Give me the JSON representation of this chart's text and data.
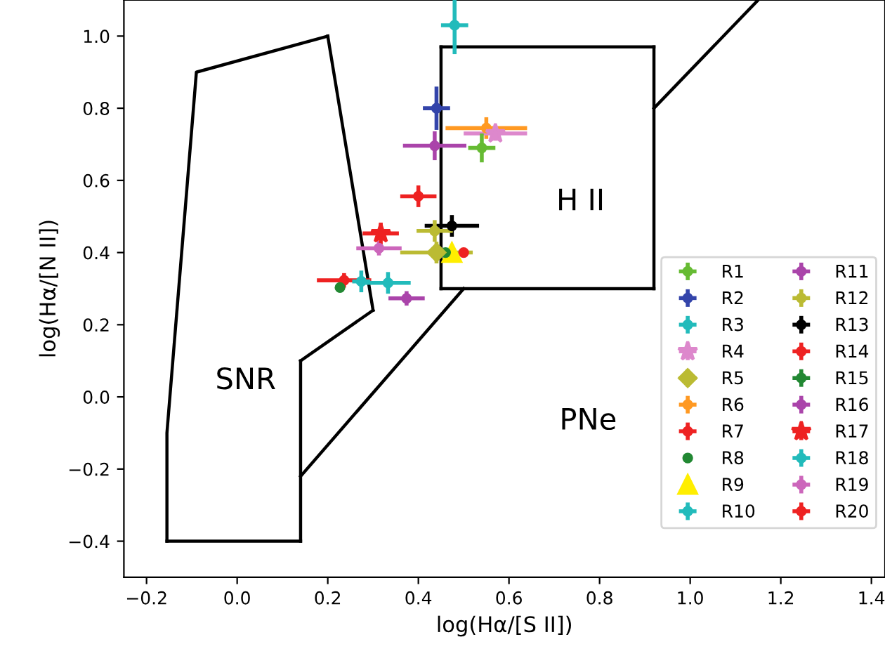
{
  "chart_data": {
    "type": "scatter",
    "xlabel": "log(Hα/[S II])",
    "ylabel": "log(Hα/[N II])",
    "xlim": [
      -0.25,
      1.43
    ],
    "ylim": [
      -0.5,
      1.1
    ],
    "xticks": [
      {
        "value": -0.2,
        "label": "−0.2"
      },
      "0.0",
      0.2,
      0.4,
      0.6,
      0.8,
      "1.0",
      1.2,
      1.4
    ],
    "yticks": [
      {
        "value": -0.4,
        "label": "−0.4"
      },
      {
        "value": -0.2,
        "label": "−0.2"
      },
      "0.0",
      0.2,
      0.4,
      0.6,
      0.8,
      "1.0"
    ],
    "legend": "bottom right",
    "grid": false,
    "annotations": [
      "SNR",
      "H II",
      "PNe"
    ],
    "series": [
      {
        "type": "line",
        "color": "#000000",
        "x": [
          -0.155,
          -0.155,
          -0.09,
          0.2
        ],
        "values": [
          -0.4,
          -0.1,
          0.9,
          1.0
        ],
        "marker": "none"
      },
      {
        "type": "line",
        "color": "#000000",
        "x": [
          0.2,
          0.3
        ],
        "values": [
          1.0,
          0.24
        ],
        "marker": "none"
      },
      {
        "type": "line",
        "color": "#000000",
        "x": [
          0.14,
          0.3
        ],
        "values": [
          0.1,
          0.24
        ],
        "marker": "none"
      },
      {
        "type": "line",
        "color": "#000000",
        "x": [
          0.14,
          0.14
        ],
        "values": [
          0.1,
          -0.4
        ],
        "marker": "none"
      },
      {
        "type": "line",
        "color": "#000000",
        "x": [
          -0.155,
          0.14
        ],
        "values": [
          -0.4,
          -0.4
        ],
        "marker": "none"
      },
      {
        "type": "line",
        "color": "#000000",
        "x": [
          0.45,
          0.92
        ],
        "values": [
          0.97,
          0.97
        ],
        "marker": "none"
      },
      {
        "type": "line",
        "color": "#000000",
        "x": [
          0.92,
          0.92
        ],
        "values": [
          0.97,
          0.3
        ],
        "marker": "none"
      },
      {
        "type": "line",
        "color": "#000000",
        "x": [
          0.45,
          0.92
        ],
        "values": [
          0.3,
          0.3
        ],
        "marker": "none"
      },
      {
        "type": "line",
        "color": "#000000",
        "x": [
          0.45,
          0.45
        ],
        "values": [
          0.3,
          0.97
        ],
        "marker": "none"
      },
      {
        "type": "line",
        "color": "#000000",
        "x": [
          0.14,
          0.5
        ],
        "values": [
          -0.22,
          0.3
        ],
        "marker": "none"
      },
      {
        "type": "line",
        "color": "#000000",
        "x": [
          0.92,
          1.15
        ],
        "values": [
          0.8,
          1.1
        ],
        "marker": "none"
      },
      {
        "name": "R1",
        "color": "#66bb33",
        "marker": "circle",
        "x": [
          0.54
        ],
        "values": [
          0.69
        ],
        "errors": [
          0.04
        ],
        "xerrors": [
          0.03
        ]
      },
      {
        "name": "R2",
        "color": "#3344aa",
        "marker": "circle",
        "x": [
          0.44
        ],
        "values": [
          0.8
        ],
        "errors": [
          0.06
        ],
        "xerrors": [
          0.03
        ]
      },
      {
        "name": "R3",
        "color": "#22bbbb",
        "marker": "circle",
        "x": [
          0.48
        ],
        "values": [
          1.03
        ],
        "errors": [
          0.08
        ],
        "xerrors": [
          0.03
        ]
      },
      {
        "name": "R4",
        "color": "#dd88cc",
        "marker": "star",
        "x": [
          0.57
        ],
        "values": [
          0.73
        ],
        "errors": [
          0.02
        ],
        "xerrors": [
          0.07
        ]
      },
      {
        "name": "R5",
        "color": "#bbbb33",
        "marker": "diamond",
        "x": [
          0.44
        ],
        "values": [
          0.4
        ],
        "errors": [
          0.03
        ],
        "xerrors": [
          0.08
        ]
      },
      {
        "name": "R6",
        "color": "#ff9922",
        "marker": "circle",
        "x": [
          0.55
        ],
        "values": [
          0.745
        ],
        "errors": [
          0.03
        ],
        "xerrors": [
          0.09
        ]
      },
      {
        "name": "R7",
        "color": "#ee2222",
        "marker": "circle",
        "x": [
          0.4
        ],
        "values": [
          0.556
        ],
        "errors": [
          0.03
        ],
        "xerrors": [
          0.04
        ]
      },
      {
        "name": "R8",
        "color": "#228833",
        "marker": "circle",
        "x": [
          0.46
        ],
        "values": [
          0.4
        ]
      },
      {
        "name": "R9",
        "color": "#ffee00",
        "marker": "triangle",
        "x": [
          0.474
        ],
        "values": [
          0.4
        ]
      },
      {
        "name": "R10",
        "color": "#22bbbb",
        "marker": "circle",
        "x": [
          0.333
        ],
        "values": [
          0.316
        ],
        "errors": [
          0.03
        ],
        "xerrors": [
          0.05
        ]
      },
      {
        "name": "R11",
        "color": "#aa44aa",
        "marker": "circle",
        "x": [
          0.436
        ],
        "values": [
          0.696
        ],
        "errors": [
          0.04
        ],
        "xerrors": [
          0.07
        ]
      },
      {
        "name": "R12",
        "color": "#bbbb33",
        "marker": "circle",
        "x": [
          0.436
        ],
        "values": [
          0.46
        ],
        "errors": [
          0.03
        ],
        "xerrors": [
          0.04
        ]
      },
      {
        "name": "R13",
        "color": "#000000",
        "marker": "circle",
        "x": [
          0.474
        ],
        "values": [
          0.474
        ],
        "errors": [
          0.03
        ],
        "xerrors": [
          0.06
        ]
      },
      {
        "name": "R14",
        "color": "#ee2222",
        "marker": "circle",
        "x": [
          0.5
        ],
        "values": [
          0.4
        ],
        "errors": [
          0.01
        ],
        "xerrors": [
          0.01
        ]
      },
      {
        "name": "R15",
        "color": "#228833",
        "marker": "circle",
        "x": [
          0.227
        ],
        "values": [
          0.303
        ],
        "errors": [
          0.01
        ],
        "xerrors": [
          0.01
        ]
      },
      {
        "name": "R16",
        "color": "#aa44aa",
        "marker": "circle",
        "x": [
          0.374
        ],
        "values": [
          0.273
        ],
        "errors": [
          0.02
        ],
        "xerrors": [
          0.04
        ]
      },
      {
        "name": "R17",
        "color": "#ee2222",
        "marker": "star",
        "x": [
          0.317
        ],
        "values": [
          0.453
        ],
        "errors": [
          0.03
        ],
        "xerrors": [
          0.04
        ]
      },
      {
        "name": "R18",
        "color": "#22bbbb",
        "marker": "circle",
        "x": [
          0.274
        ],
        "values": [
          0.32
        ],
        "errors": [
          0.03
        ],
        "xerrors": [
          0.02
        ]
      },
      {
        "name": "R19",
        "color": "#cc66bb",
        "marker": "circle",
        "x": [
          0.313
        ],
        "values": [
          0.412
        ],
        "errors": [
          0.02
        ],
        "xerrors": [
          0.05
        ]
      },
      {
        "name": "R20",
        "color": "#ee2222",
        "marker": "circle",
        "x": [
          0.236
        ],
        "values": [
          0.323
        ],
        "errors": [
          0.02
        ],
        "xerrors": [
          0.06
        ]
      }
    ]
  }
}
